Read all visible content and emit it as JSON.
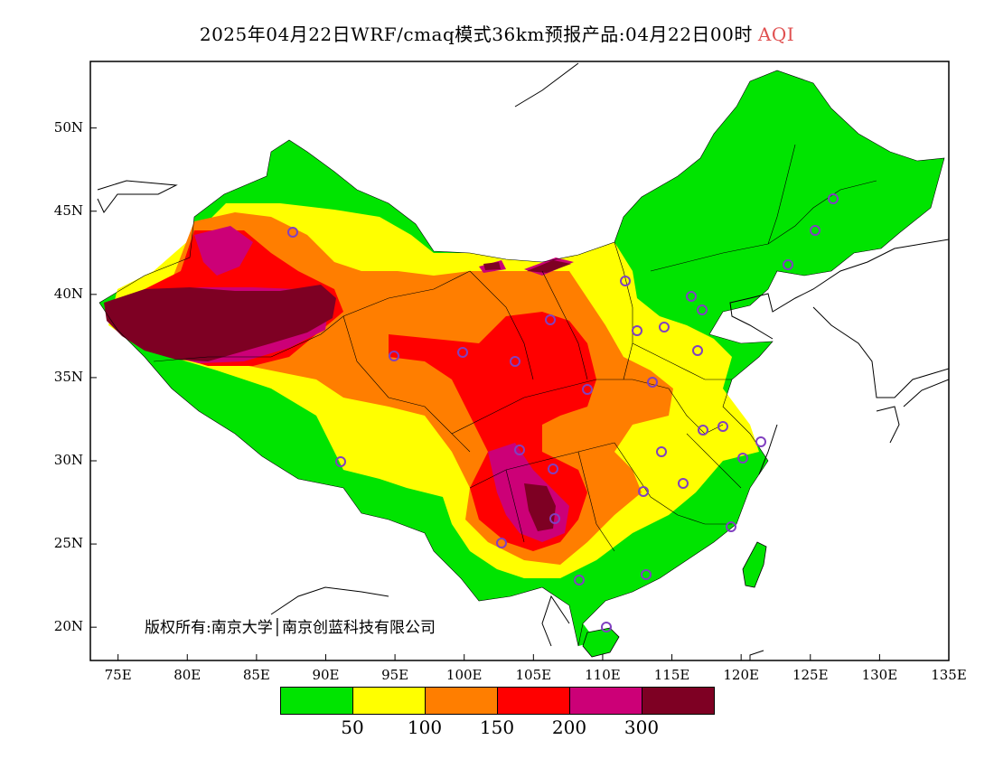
{
  "title": {
    "main": "2025年04月22日WRF/cmaq模式36km预报产品:04月22日00时",
    "variable": "AQI"
  },
  "copyright": "版权所有:南京大学│南京创蓝科技有限公司",
  "map": {
    "lon_range": [
      73,
      135
    ],
    "lat_range": [
      18,
      54
    ],
    "lon_ticks": [
      {
        "value": 75,
        "label": "75E"
      },
      {
        "value": 80,
        "label": "80E"
      },
      {
        "value": 85,
        "label": "85E"
      },
      {
        "value": 90,
        "label": "90E"
      },
      {
        "value": 95,
        "label": "95E"
      },
      {
        "value": 100,
        "label": "100E"
      },
      {
        "value": 105,
        "label": "105E"
      },
      {
        "value": 110,
        "label": "110E"
      },
      {
        "value": 115,
        "label": "115E"
      },
      {
        "value": 120,
        "label": "120E"
      },
      {
        "value": 125,
        "label": "125E"
      },
      {
        "value": 130,
        "label": "130E"
      },
      {
        "value": 135,
        "label": "135E"
      }
    ],
    "lat_ticks": [
      {
        "value": 20,
        "label": "20N"
      },
      {
        "value": 25,
        "label": "25N"
      },
      {
        "value": 30,
        "label": "30N"
      },
      {
        "value": 35,
        "label": "35N"
      },
      {
        "value": 40,
        "label": "40N"
      },
      {
        "value": 45,
        "label": "45N"
      },
      {
        "value": 50,
        "label": "50N"
      }
    ]
  },
  "legend": {
    "colors": [
      "#00e400",
      "#ffff00",
      "#ff7e00",
      "#ff0000",
      "#cc0077",
      "#7e0023"
    ],
    "tick_labels": [
      "50",
      "100",
      "150",
      "200",
      "300"
    ]
  }
}
